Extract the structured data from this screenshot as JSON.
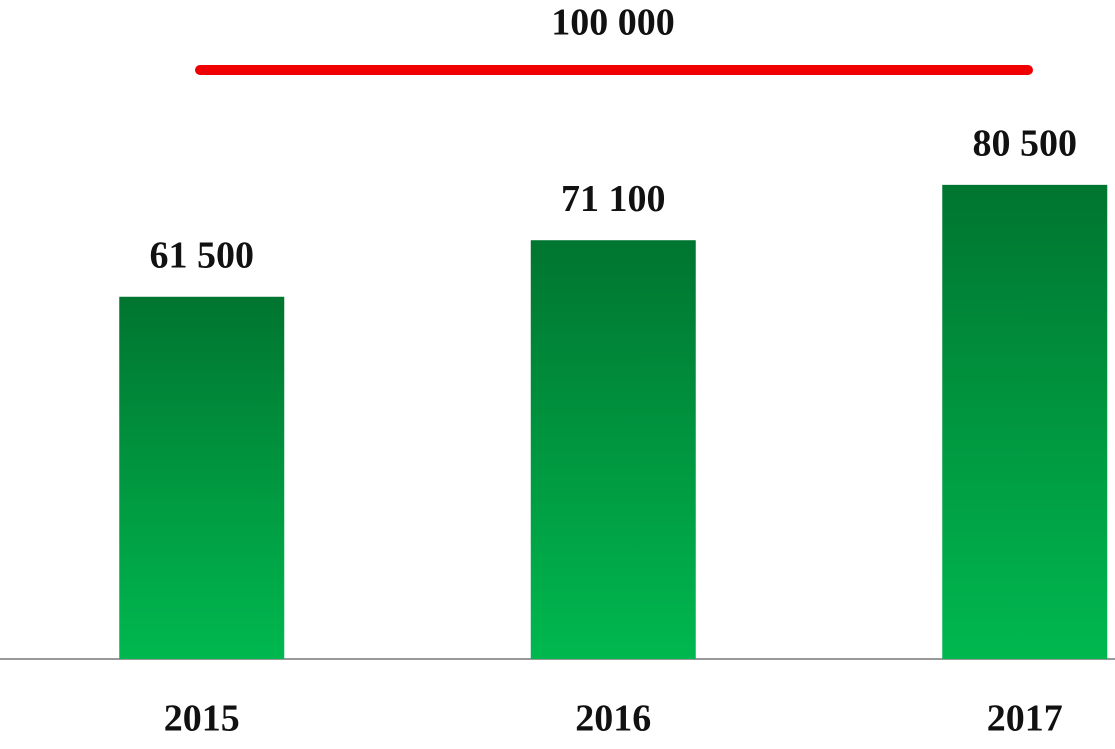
{
  "chart_data": {
    "type": "bar",
    "categories": [
      "2015",
      "2016",
      "2017"
    ],
    "values": [
      61500,
      71100,
      80500
    ],
    "value_labels": [
      "61 500",
      "71 100",
      "80 500"
    ],
    "color": "#00a846",
    "target": {
      "value": 100000,
      "label": "100 000",
      "color": "#f00000"
    }
  }
}
